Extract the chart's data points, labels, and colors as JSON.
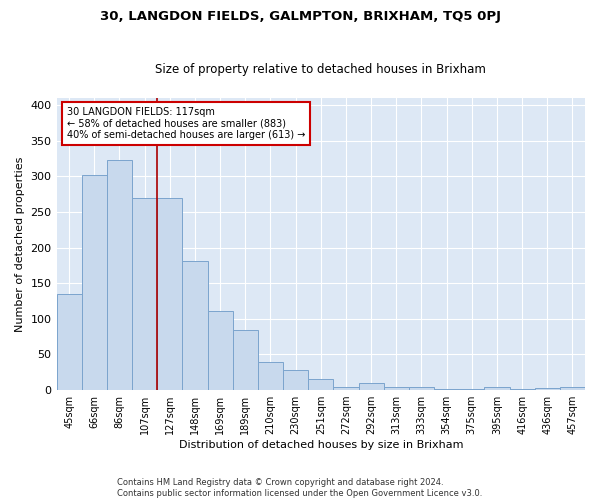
{
  "title": "30, LANGDON FIELDS, GALMPTON, BRIXHAM, TQ5 0PJ",
  "subtitle": "Size of property relative to detached houses in Brixham",
  "xlabel": "Distribution of detached houses by size in Brixham",
  "ylabel": "Number of detached properties",
  "categories": [
    "45sqm",
    "66sqm",
    "86sqm",
    "107sqm",
    "127sqm",
    "148sqm",
    "169sqm",
    "189sqm",
    "210sqm",
    "230sqm",
    "251sqm",
    "272sqm",
    "292sqm",
    "313sqm",
    "333sqm",
    "354sqm",
    "375sqm",
    "395sqm",
    "416sqm",
    "436sqm",
    "457sqm"
  ],
  "values": [
    135,
    302,
    323,
    270,
    270,
    181,
    111,
    84,
    39,
    28,
    15,
    4,
    10,
    4,
    5,
    2,
    2,
    4,
    2,
    3,
    5
  ],
  "bar_color": "#c8d9ed",
  "bar_edgecolor": "#7ba4cd",
  "vline_color": "#aa0000",
  "vline_x": 3.5,
  "annotation_text": "30 LANGDON FIELDS: 117sqm\n← 58% of detached houses are smaller (883)\n40% of semi-detached houses are larger (613) →",
  "annotation_box_facecolor": "white",
  "annotation_box_edgecolor": "#cc0000",
  "footer_line1": "Contains HM Land Registry data © Crown copyright and database right 2024.",
  "footer_line2": "Contains public sector information licensed under the Open Government Licence v3.0.",
  "background_color": "#dde8f5",
  "ylim": [
    0,
    410
  ],
  "yticks": [
    0,
    50,
    100,
    150,
    200,
    250,
    300,
    350,
    400
  ]
}
